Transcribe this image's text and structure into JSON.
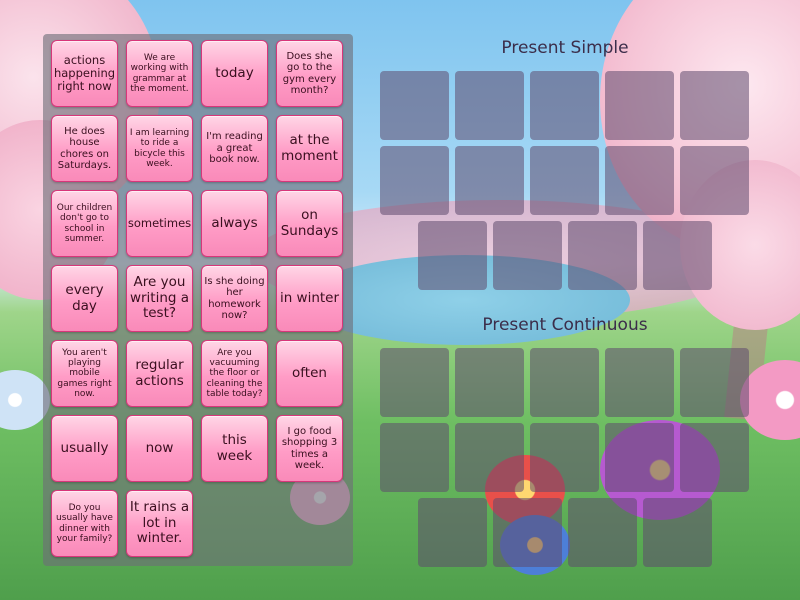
{
  "cards": [
    {
      "text": "actions happening right now",
      "size": "m"
    },
    {
      "text": "We are working with grammar at the moment.",
      "size": "xs"
    },
    {
      "text": "today",
      "size": "l"
    },
    {
      "text": "Does she go to the gym every month?",
      "size": "s"
    },
    {
      "text": "He does house chores on Saturdays.",
      "size": "s"
    },
    {
      "text": "I am learning to ride a bicycle this week.",
      "size": "xs"
    },
    {
      "text": "I'm reading a great book now.",
      "size": "s"
    },
    {
      "text": "at the moment",
      "size": "l"
    },
    {
      "text": "Our children don't go to school in summer.",
      "size": "xs"
    },
    {
      "text": "sometimes",
      "size": "m"
    },
    {
      "text": "always",
      "size": "l"
    },
    {
      "text": "on Sundays",
      "size": "l"
    },
    {
      "text": "every day",
      "size": "l"
    },
    {
      "text": "Are you writing a test?",
      "size": "l"
    },
    {
      "text": "Is she doing her homework now?",
      "size": "s"
    },
    {
      "text": "in winter",
      "size": "l"
    },
    {
      "text": "You aren't playing mobile games right now.",
      "size": "xs"
    },
    {
      "text": "regular actions",
      "size": "l"
    },
    {
      "text": "Are you vacuuming the floor or cleaning the table today?",
      "size": "xs"
    },
    {
      "text": "often",
      "size": "l"
    },
    {
      "text": "usually",
      "size": "l"
    },
    {
      "text": "now",
      "size": "l"
    },
    {
      "text": "this week",
      "size": "l"
    },
    {
      "text": "I go food shopping 3 times a week.",
      "size": "s"
    },
    {
      "text": "Do you usually have dinner with your family?",
      "size": "xs"
    },
    {
      "text": "It rains a lot in winter.",
      "size": "l"
    }
  ],
  "groups": [
    {
      "title": "Present Simple",
      "slots": 14
    },
    {
      "title": "Present Continuous",
      "slots": 14
    }
  ]
}
